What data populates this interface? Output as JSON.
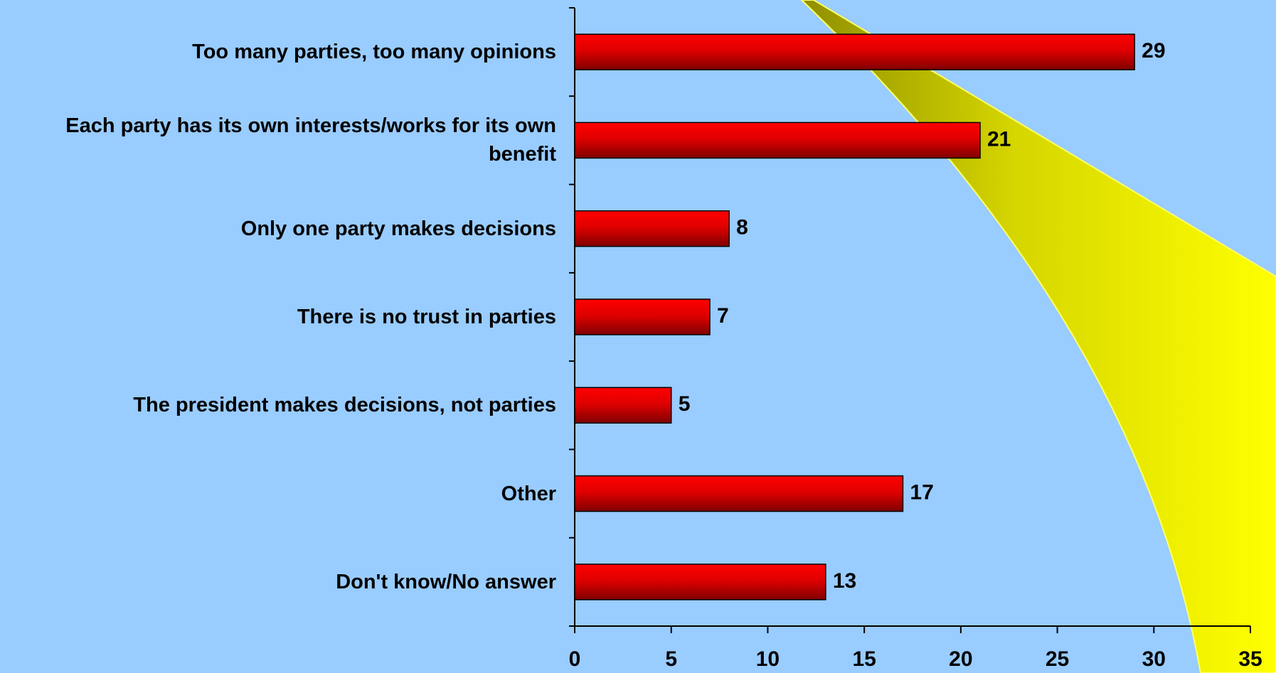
{
  "chart_data": {
    "type": "bar",
    "orientation": "horizontal",
    "categories": [
      "Too many parties, too many opinions",
      "Each party has its own interests/works for its own benefit",
      "Only one party makes decisions",
      "There is no trust in parties",
      "The president makes decisions, not parties",
      "Other",
      "Don't know/No answer"
    ],
    "values": [
      29,
      21,
      8,
      7,
      5,
      17,
      13
    ],
    "color": "#ff0000",
    "xlim": [
      0,
      35
    ],
    "xticks": [
      0,
      5,
      10,
      15,
      20,
      25,
      30,
      35
    ],
    "grid": false
  }
}
